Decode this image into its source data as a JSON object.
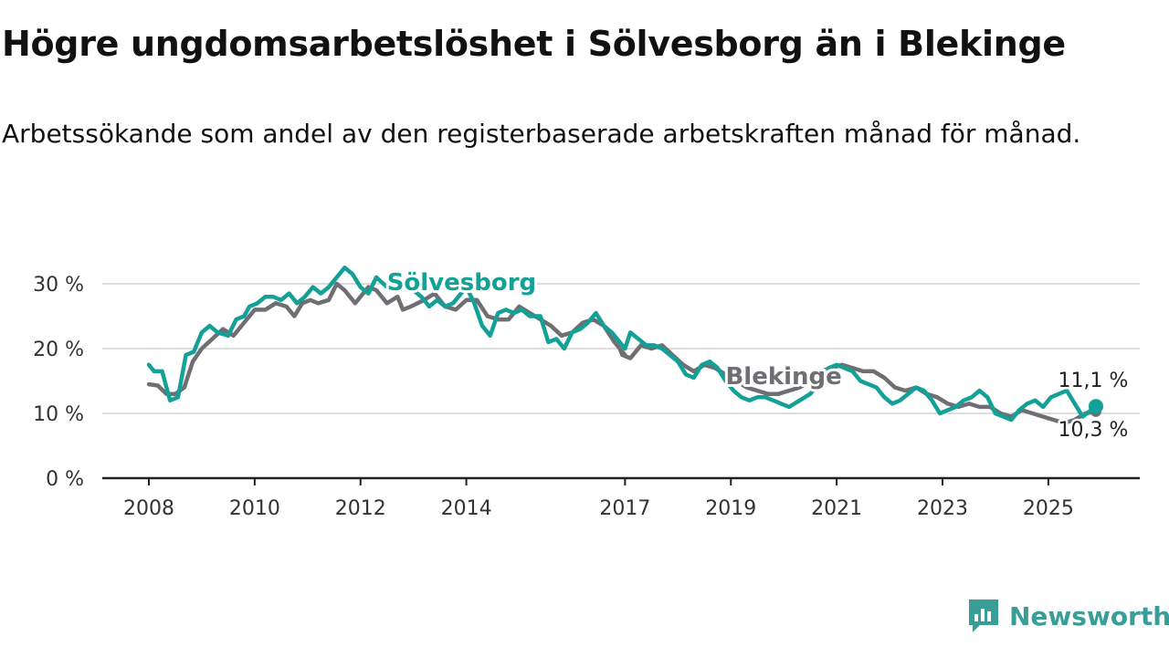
{
  "header": {
    "title": "Högre ungdomsarbetslöshet i Sölvesborg än i Blekinge",
    "subtitle": "Arbetssökande som andel av den registerbaserade arbetskraften månad för månad."
  },
  "brand": {
    "name": "Newsworthy",
    "icon": "newsworthy-logo-icon",
    "color": "#3a9e98"
  },
  "chart_data": {
    "type": "line",
    "xlim": [
      2008,
      2025.9
    ],
    "ylim": [
      0,
      30
    ],
    "y_ticks": [
      {
        "value": 0,
        "label": "0 %"
      },
      {
        "value": 10,
        "label": "10 %"
      },
      {
        "value": 20,
        "label": "20 %"
      },
      {
        "value": 30,
        "label": "30 %"
      }
    ],
    "x_ticks": [
      {
        "value": 2008,
        "label": "2008"
      },
      {
        "value": 2010,
        "label": "2010"
      },
      {
        "value": 2012,
        "label": "2012"
      },
      {
        "value": 2014,
        "label": "2014"
      },
      {
        "value": 2017,
        "label": "2017"
      },
      {
        "value": 2019,
        "label": "2019"
      },
      {
        "value": 2021,
        "label": "2021"
      },
      {
        "value": 2023,
        "label": "2023"
      },
      {
        "value": 2025,
        "label": "2025"
      }
    ],
    "grid": true,
    "series": [
      {
        "name": "Blekinge",
        "color": "#6e6e73",
        "label_position": [
          2018.9,
          14.5
        ],
        "end_label": "10,3 %",
        "values": [
          [
            2008.0,
            14.5
          ],
          [
            2008.17,
            14.3
          ],
          [
            2008.33,
            13.0
          ],
          [
            2008.5,
            13.0
          ],
          [
            2008.67,
            14.0
          ],
          [
            2008.83,
            18.0
          ],
          [
            2009.0,
            20.0
          ],
          [
            2009.2,
            21.5
          ],
          [
            2009.4,
            23.0
          ],
          [
            2009.6,
            22.0
          ],
          [
            2009.8,
            24.0
          ],
          [
            2010.0,
            26.0
          ],
          [
            2010.2,
            26.0
          ],
          [
            2010.4,
            27.0
          ],
          [
            2010.6,
            26.5
          ],
          [
            2010.75,
            25.0
          ],
          [
            2010.9,
            27.0
          ],
          [
            2011.05,
            27.5
          ],
          [
            2011.2,
            27.0
          ],
          [
            2011.4,
            27.5
          ],
          [
            2011.55,
            30.0
          ],
          [
            2011.7,
            29.0
          ],
          [
            2011.9,
            27.0
          ],
          [
            2012.0,
            28.0
          ],
          [
            2012.15,
            29.5
          ],
          [
            2012.3,
            29.0
          ],
          [
            2012.5,
            27.0
          ],
          [
            2012.7,
            28.0
          ],
          [
            2012.8,
            26.0
          ],
          [
            2012.95,
            26.5
          ],
          [
            2013.2,
            27.5
          ],
          [
            2013.4,
            28.5
          ],
          [
            2013.6,
            26.5
          ],
          [
            2013.8,
            26.0
          ],
          [
            2014.0,
            27.5
          ],
          [
            2014.2,
            27.5
          ],
          [
            2014.4,
            25.0
          ],
          [
            2014.6,
            24.5
          ],
          [
            2014.8,
            24.5
          ],
          [
            2015.0,
            26.5
          ],
          [
            2015.2,
            25.5
          ],
          [
            2015.4,
            24.5
          ],
          [
            2015.6,
            23.5
          ],
          [
            2015.8,
            22.0
          ],
          [
            2016.0,
            22.5
          ],
          [
            2016.2,
            24.0
          ],
          [
            2016.4,
            24.5
          ],
          [
            2016.6,
            23.5
          ],
          [
            2016.8,
            21.0
          ],
          [
            2017.0,
            19.0
          ],
          [
            2016.9,
            20.0
          ],
          [
            2016.95,
            19.0
          ],
          [
            2017.1,
            18.5
          ],
          [
            2017.3,
            20.5
          ],
          [
            2017.5,
            20.0
          ],
          [
            2017.7,
            20.5
          ],
          [
            2017.9,
            19.0
          ],
          [
            2018.1,
            17.5
          ],
          [
            2018.3,
            16.5
          ],
          [
            2018.5,
            17.5
          ],
          [
            2018.7,
            17.0
          ],
          [
            2018.9,
            16.0
          ],
          [
            2019.1,
            15.0
          ],
          [
            2019.3,
            14.0
          ],
          [
            2019.5,
            13.5
          ],
          [
            2019.7,
            13.0
          ],
          [
            2019.9,
            13.0
          ],
          [
            2020.1,
            13.5
          ],
          [
            2020.3,
            14.0
          ],
          [
            2020.5,
            15.0
          ],
          [
            2020.7,
            16.5
          ],
          [
            2020.9,
            17.0
          ],
          [
            2021.1,
            17.5
          ],
          [
            2021.3,
            17.0
          ],
          [
            2021.5,
            16.5
          ],
          [
            2021.7,
            16.5
          ],
          [
            2021.9,
            15.5
          ],
          [
            2022.1,
            14.0
          ],
          [
            2022.3,
            13.5
          ],
          [
            2022.5,
            14.0
          ],
          [
            2022.7,
            13.0
          ],
          [
            2022.9,
            12.5
          ],
          [
            2023.1,
            11.5
          ],
          [
            2023.3,
            11.0
          ],
          [
            2023.5,
            11.5
          ],
          [
            2023.7,
            11.0
          ],
          [
            2023.9,
            11.0
          ],
          [
            2024.1,
            10.0
          ],
          [
            2024.3,
            9.5
          ],
          [
            2024.5,
            10.5
          ],
          [
            2024.7,
            10.0
          ],
          [
            2024.9,
            9.5
          ],
          [
            2025.1,
            9.0
          ],
          [
            2025.3,
            8.5
          ],
          [
            2025.5,
            9.0
          ],
          [
            2025.7,
            10.0
          ],
          [
            2025.9,
            10.3
          ]
        ]
      },
      {
        "name": "Sölvesborg",
        "color": "#13a197",
        "label_position": [
          2012.5,
          29.0
        ],
        "end_label": "11,1 %",
        "values": [
          [
            2008.0,
            17.5
          ],
          [
            2008.1,
            16.5
          ],
          [
            2008.25,
            16.5
          ],
          [
            2008.4,
            12.0
          ],
          [
            2008.55,
            12.5
          ],
          [
            2008.7,
            19.0
          ],
          [
            2008.85,
            19.5
          ],
          [
            2009.0,
            22.5
          ],
          [
            2009.15,
            23.5
          ],
          [
            2009.3,
            22.5
          ],
          [
            2009.5,
            22.0
          ],
          [
            2009.65,
            24.5
          ],
          [
            2009.8,
            25.0
          ],
          [
            2009.9,
            26.5
          ],
          [
            2010.05,
            27.0
          ],
          [
            2010.2,
            28.0
          ],
          [
            2010.35,
            28.0
          ],
          [
            2010.5,
            27.5
          ],
          [
            2010.65,
            28.5
          ],
          [
            2010.8,
            27.0
          ],
          [
            2010.95,
            28.0
          ],
          [
            2011.1,
            29.5
          ],
          [
            2011.25,
            28.5
          ],
          [
            2011.4,
            29.5
          ],
          [
            2011.55,
            31.0
          ],
          [
            2011.7,
            32.5
          ],
          [
            2011.85,
            31.5
          ],
          [
            2012.0,
            29.5
          ],
          [
            2012.15,
            28.5
          ],
          [
            2012.3,
            31.0
          ],
          [
            2012.5,
            29.5
          ],
          [
            2012.7,
            29.5
          ],
          [
            2012.85,
            30.5
          ],
          [
            2013.0,
            29.0
          ],
          [
            2013.15,
            28.0
          ],
          [
            2013.3,
            26.5
          ],
          [
            2013.45,
            27.5
          ],
          [
            2013.6,
            26.5
          ],
          [
            2013.75,
            27.0
          ],
          [
            2014.0,
            29.5
          ],
          [
            2014.15,
            27.0
          ],
          [
            2014.3,
            23.5
          ],
          [
            2014.45,
            22.0
          ],
          [
            2014.6,
            25.5
          ],
          [
            2014.75,
            26.0
          ],
          [
            2014.9,
            25.5
          ],
          [
            2015.05,
            26.0
          ],
          [
            2015.2,
            25.0
          ],
          [
            2015.4,
            25.0
          ],
          [
            2015.55,
            21.0
          ],
          [
            2015.7,
            21.5
          ],
          [
            2015.85,
            20.0
          ],
          [
            2016.0,
            22.5
          ],
          [
            2016.15,
            23.0
          ],
          [
            2016.3,
            24.0
          ],
          [
            2016.45,
            25.5
          ],
          [
            2016.6,
            23.5
          ],
          [
            2016.75,
            22.5
          ],
          [
            2016.9,
            21.0
          ],
          [
            2017.0,
            20.0
          ],
          [
            2017.1,
            22.5
          ],
          [
            2017.25,
            21.5
          ],
          [
            2017.4,
            20.5
          ],
          [
            2017.55,
            20.5
          ],
          [
            2017.7,
            20.0
          ],
          [
            2017.85,
            19.0
          ],
          [
            2018.0,
            18.0
          ],
          [
            2018.15,
            16.0
          ],
          [
            2018.3,
            15.5
          ],
          [
            2018.45,
            17.5
          ],
          [
            2018.6,
            18.0
          ],
          [
            2018.75,
            17.0
          ],
          [
            2018.9,
            15.0
          ],
          [
            2019.05,
            13.5
          ],
          [
            2019.2,
            12.5
          ],
          [
            2019.35,
            12.0
          ],
          [
            2019.5,
            12.5
          ],
          [
            2019.65,
            12.5
          ],
          [
            2019.8,
            12.0
          ],
          [
            2019.95,
            11.5
          ],
          [
            2020.1,
            11.0
          ],
          [
            2020.3,
            12.0
          ],
          [
            2020.5,
            13.0
          ],
          [
            2020.7,
            15.0
          ],
          [
            2020.85,
            17.0
          ],
          [
            2021.0,
            17.5
          ],
          [
            2021.15,
            17.0
          ],
          [
            2021.3,
            16.5
          ],
          [
            2021.45,
            15.0
          ],
          [
            2021.6,
            14.5
          ],
          [
            2021.75,
            14.0
          ],
          [
            2021.9,
            12.5
          ],
          [
            2022.05,
            11.5
          ],
          [
            2022.2,
            12.0
          ],
          [
            2022.35,
            13.0
          ],
          [
            2022.5,
            14.0
          ],
          [
            2022.65,
            13.5
          ],
          [
            2022.8,
            12.0
          ],
          [
            2022.95,
            10.0
          ],
          [
            2023.1,
            10.5
          ],
          [
            2023.25,
            11.0
          ],
          [
            2023.4,
            12.0
          ],
          [
            2023.55,
            12.5
          ],
          [
            2023.7,
            13.5
          ],
          [
            2023.85,
            12.5
          ],
          [
            2024.0,
            10.0
          ],
          [
            2024.15,
            9.5
          ],
          [
            2024.3,
            9.0
          ],
          [
            2024.45,
            10.5
          ],
          [
            2024.6,
            11.5
          ],
          [
            2024.75,
            12.0
          ],
          [
            2024.9,
            11.0
          ],
          [
            2025.05,
            12.5
          ],
          [
            2025.2,
            13.0
          ],
          [
            2025.35,
            13.5
          ],
          [
            2025.5,
            11.5
          ],
          [
            2025.65,
            9.5
          ],
          [
            2025.9,
            11.1
          ]
        ]
      }
    ]
  }
}
